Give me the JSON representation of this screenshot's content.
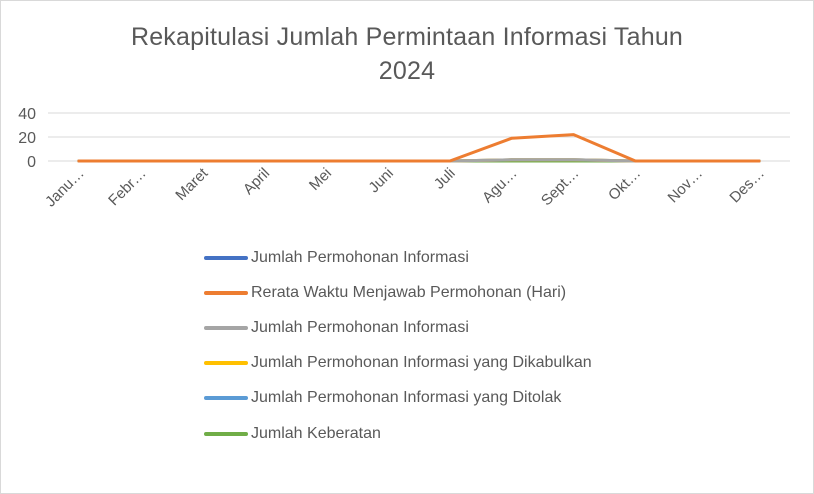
{
  "chart_data": {
    "type": "line",
    "title_lines": [
      "Rekapitulasi Jumlah Permintaan Informasi Tahun",
      "2024"
    ],
    "categories": [
      "Janu…",
      "Febr…",
      "Maret",
      "April",
      "Mei",
      "Juni",
      "Juli",
      "Agu…",
      "Sept…",
      "Okt…",
      "Nov…",
      "Des…"
    ],
    "yticks": [
      0,
      20,
      40
    ],
    "ylim": [
      0,
      40
    ],
    "grid": true,
    "legend_position": "bottom",
    "series": [
      {
        "name": "Jumlah Permohonan Informasi",
        "color": "#4472c4",
        "values": [
          0,
          0,
          0,
          0,
          0,
          0,
          0,
          1,
          1,
          0,
          0,
          0
        ]
      },
      {
        "name": "Rerata Waktu Menjawab Permohonan (Hari)",
        "color": "#ed7d31",
        "values": [
          0,
          0,
          0,
          0,
          0,
          0,
          0,
          19,
          22,
          0,
          0,
          0
        ]
      },
      {
        "name": "Jumlah Permohonan Informasi",
        "color": "#a5a5a5",
        "values": [
          0,
          0,
          0,
          0,
          0,
          0,
          0,
          1,
          1,
          0,
          0,
          0
        ]
      },
      {
        "name": "Jumlah Permohonan Informasi yang Dikabulkan",
        "color": "#ffc000",
        "values": [
          0,
          0,
          0,
          0,
          0,
          0,
          0,
          1,
          1,
          0,
          0,
          0
        ]
      },
      {
        "name": "Jumlah Permohonan Informasi yang Ditolak",
        "color": "#5b9bd5",
        "values": [
          0,
          0,
          0,
          0,
          0,
          0,
          0,
          0,
          0,
          0,
          0,
          0
        ]
      },
      {
        "name": "Jumlah Keberatan",
        "color": "#70ad47",
        "values": [
          0,
          0,
          0,
          0,
          0,
          0,
          0,
          0,
          0,
          0,
          0,
          0
        ]
      }
    ]
  }
}
